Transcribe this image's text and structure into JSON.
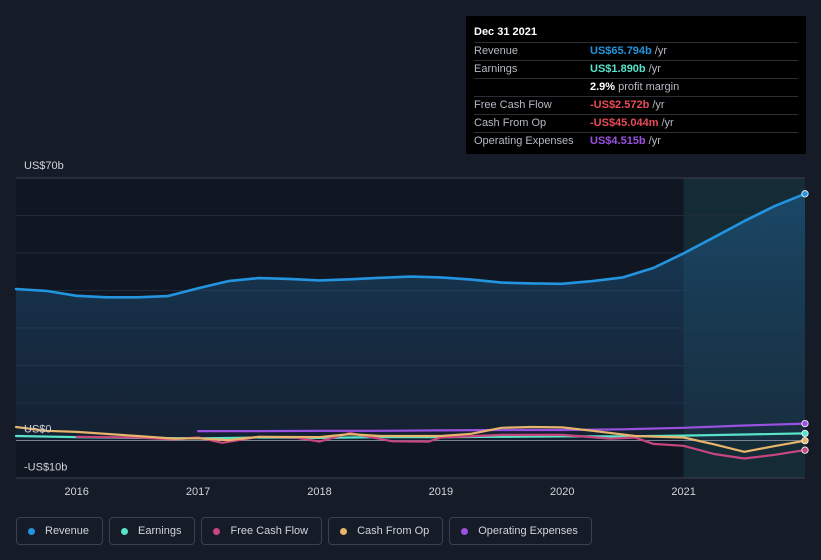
{
  "tooltip": {
    "date": "Dec 31 2021",
    "rows": [
      {
        "label": "Revenue",
        "value": "US$65.794b",
        "unit": "/yr",
        "color": "#2394df"
      },
      {
        "label": "Earnings",
        "value": "US$1.890b",
        "unit": "/yr",
        "color": "#59e3c8"
      },
      {
        "label": "",
        "value": "2.9%",
        "unit": "profit margin",
        "color": "#ffffff"
      },
      {
        "label": "Free Cash Flow",
        "value": "-US$2.572b",
        "unit": "/yr",
        "color": "#e84a57"
      },
      {
        "label": "Cash From Op",
        "value": "-US$45.044m",
        "unit": "/yr",
        "color": "#e84a57"
      },
      {
        "label": "Operating Expenses",
        "value": "US$4.515b",
        "unit": "/yr",
        "color": "#9b51e0"
      }
    ]
  },
  "legend": [
    {
      "label": "Revenue",
      "color": "#2394df"
    },
    {
      "label": "Earnings",
      "color": "#59e3c8"
    },
    {
      "label": "Free Cash Flow",
      "color": "#c8467f"
    },
    {
      "label": "Cash From Op",
      "color": "#e6b46a"
    },
    {
      "label": "Operating Expenses",
      "color": "#9b51e0"
    }
  ],
  "chart_data": {
    "type": "line",
    "y_tick_labels": [
      "US$70b",
      "US$0",
      "-US$10b"
    ],
    "x_tick_labels": [
      "2016",
      "2017",
      "2018",
      "2019",
      "2020",
      "2021"
    ],
    "ylim": [
      -10,
      70
    ],
    "xlim": [
      2015.5,
      2022.0
    ],
    "highlight_start": 2021.0,
    "grid": true,
    "legend_position": "bottom",
    "series": [
      {
        "name": "Revenue",
        "color": "#2394df",
        "points": [
          [
            2015.5,
            40.4
          ],
          [
            2015.75,
            39.9
          ],
          [
            2016.0,
            38.6
          ],
          [
            2016.25,
            38.2
          ],
          [
            2016.5,
            38.2
          ],
          [
            2016.75,
            38.5
          ],
          [
            2017.0,
            40.6
          ],
          [
            2017.25,
            42.5
          ],
          [
            2017.5,
            43.3
          ],
          [
            2017.75,
            43.1
          ],
          [
            2018.0,
            42.7
          ],
          [
            2018.25,
            43.0
          ],
          [
            2018.5,
            43.4
          ],
          [
            2018.75,
            43.7
          ],
          [
            2019.0,
            43.5
          ],
          [
            2019.25,
            42.9
          ],
          [
            2019.5,
            42.1
          ],
          [
            2019.75,
            41.9
          ],
          [
            2020.0,
            41.8
          ],
          [
            2020.25,
            42.5
          ],
          [
            2020.5,
            43.5
          ],
          [
            2020.75,
            46.0
          ],
          [
            2021.0,
            49.9
          ],
          [
            2021.25,
            54.2
          ],
          [
            2021.5,
            58.5
          ],
          [
            2021.75,
            62.5
          ],
          [
            2022.0,
            65.794
          ]
        ]
      },
      {
        "name": "Earnings",
        "color": "#59e3c8",
        "points": [
          [
            2015.5,
            1.2
          ],
          [
            2016.0,
            0.9
          ],
          [
            2016.5,
            0.7
          ],
          [
            2017.0,
            0.6
          ],
          [
            2017.5,
            0.8
          ],
          [
            2018.0,
            0.7
          ],
          [
            2018.5,
            0.9
          ],
          [
            2019.0,
            0.9
          ],
          [
            2019.5,
            1.0
          ],
          [
            2020.0,
            1.1
          ],
          [
            2020.5,
            1.1
          ],
          [
            2021.0,
            1.3
          ],
          [
            2021.5,
            1.6
          ],
          [
            2022.0,
            1.89
          ]
        ]
      },
      {
        "name": "Free Cash Flow",
        "color": "#c8467f",
        "points": [
          [
            2016.0,
            1.0
          ],
          [
            2016.5,
            0.8
          ],
          [
            2016.8,
            0.3
          ],
          [
            2017.0,
            0.8
          ],
          [
            2017.2,
            -0.6
          ],
          [
            2017.5,
            1.0
          ],
          [
            2017.8,
            0.8
          ],
          [
            2018.0,
            -0.3
          ],
          [
            2018.25,
            2.0
          ],
          [
            2018.6,
            -0.2
          ],
          [
            2018.9,
            -0.3
          ],
          [
            2019.0,
            0.8
          ],
          [
            2019.5,
            1.5
          ],
          [
            2020.0,
            1.5
          ],
          [
            2020.4,
            0.5
          ],
          [
            2020.6,
            0.8
          ],
          [
            2020.75,
            -0.9
          ],
          [
            2021.0,
            -1.4
          ],
          [
            2021.25,
            -3.6
          ],
          [
            2021.5,
            -4.8
          ],
          [
            2021.75,
            -3.8
          ],
          [
            2022.0,
            -2.572
          ]
        ]
      },
      {
        "name": "Cash From Op",
        "color": "#e6b46a",
        "points": [
          [
            2015.5,
            3.6
          ],
          [
            2015.75,
            2.6
          ],
          [
            2016.0,
            2.3
          ],
          [
            2016.5,
            1.2
          ],
          [
            2016.8,
            0.5
          ],
          [
            2017.0,
            0.6
          ],
          [
            2017.25,
            0.1
          ],
          [
            2017.5,
            1.0
          ],
          [
            2018.0,
            0.9
          ],
          [
            2018.25,
            1.7
          ],
          [
            2018.5,
            1.2
          ],
          [
            2019.0,
            1.2
          ],
          [
            2019.25,
            1.8
          ],
          [
            2019.5,
            3.4
          ],
          [
            2019.75,
            3.6
          ],
          [
            2020.0,
            3.5
          ],
          [
            2020.25,
            2.6
          ],
          [
            2020.6,
            1.2
          ],
          [
            2020.8,
            1.0
          ],
          [
            2021.0,
            0.8
          ],
          [
            2021.25,
            -1.0
          ],
          [
            2021.5,
            -3.0
          ],
          [
            2021.75,
            -1.5
          ],
          [
            2022.0,
            -0.045
          ]
        ]
      },
      {
        "name": "Operating Expenses",
        "color": "#9b51e0",
        "points": [
          [
            2017.0,
            2.5
          ],
          [
            2017.5,
            2.5
          ],
          [
            2018.0,
            2.6
          ],
          [
            2018.5,
            2.6
          ],
          [
            2019.0,
            2.7
          ],
          [
            2019.5,
            2.8
          ],
          [
            2020.0,
            2.8
          ],
          [
            2020.5,
            3.0
          ],
          [
            2021.0,
            3.4
          ],
          [
            2021.5,
            4.0
          ],
          [
            2022.0,
            4.515
          ]
        ]
      }
    ]
  }
}
